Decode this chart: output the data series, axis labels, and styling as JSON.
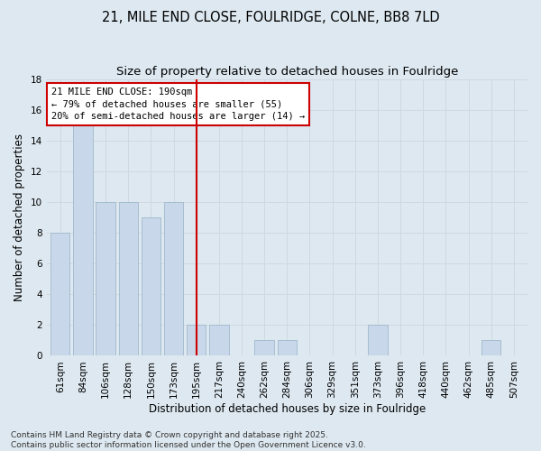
{
  "title_line1": "21, MILE END CLOSE, FOULRIDGE, COLNE, BB8 7LD",
  "title_line2": "Size of property relative to detached houses in Foulridge",
  "xlabel": "Distribution of detached houses by size in Foulridge",
  "ylabel": "Number of detached properties",
  "categories": [
    "61sqm",
    "84sqm",
    "106sqm",
    "128sqm",
    "150sqm",
    "173sqm",
    "195sqm",
    "217sqm",
    "240sqm",
    "262sqm",
    "284sqm",
    "306sqm",
    "329sqm",
    "351sqm",
    "373sqm",
    "396sqm",
    "418sqm",
    "440sqm",
    "462sqm",
    "485sqm",
    "507sqm"
  ],
  "values": [
    8,
    15,
    10,
    10,
    9,
    10,
    2,
    2,
    0,
    1,
    1,
    0,
    0,
    0,
    2,
    0,
    0,
    0,
    0,
    1,
    0
  ],
  "bar_color": "#c8d8ea",
  "bar_edge_color": "#a0b8cc",
  "grid_color": "#d0d8e0",
  "background_color": "#dde8f0",
  "red_line_index": 6,
  "annotation_line1": "21 MILE END CLOSE: 190sqm",
  "annotation_line2": "← 79% of detached houses are smaller (55)",
  "annotation_line3": "20% of semi-detached houses are larger (14) →",
  "annotation_box_color": "#ffffff",
  "annotation_box_edge_color": "#cc0000",
  "ylim": [
    0,
    18
  ],
  "yticks": [
    0,
    2,
    4,
    6,
    8,
    10,
    12,
    14,
    16,
    18
  ],
  "footer_text": "Contains HM Land Registry data © Crown copyright and database right 2025.\nContains public sector information licensed under the Open Government Licence v3.0.",
  "title_fontsize": 10.5,
  "subtitle_fontsize": 9.5,
  "axis_label_fontsize": 8.5,
  "tick_fontsize": 7.5,
  "annotation_fontsize": 7.5,
  "footer_fontsize": 6.5
}
